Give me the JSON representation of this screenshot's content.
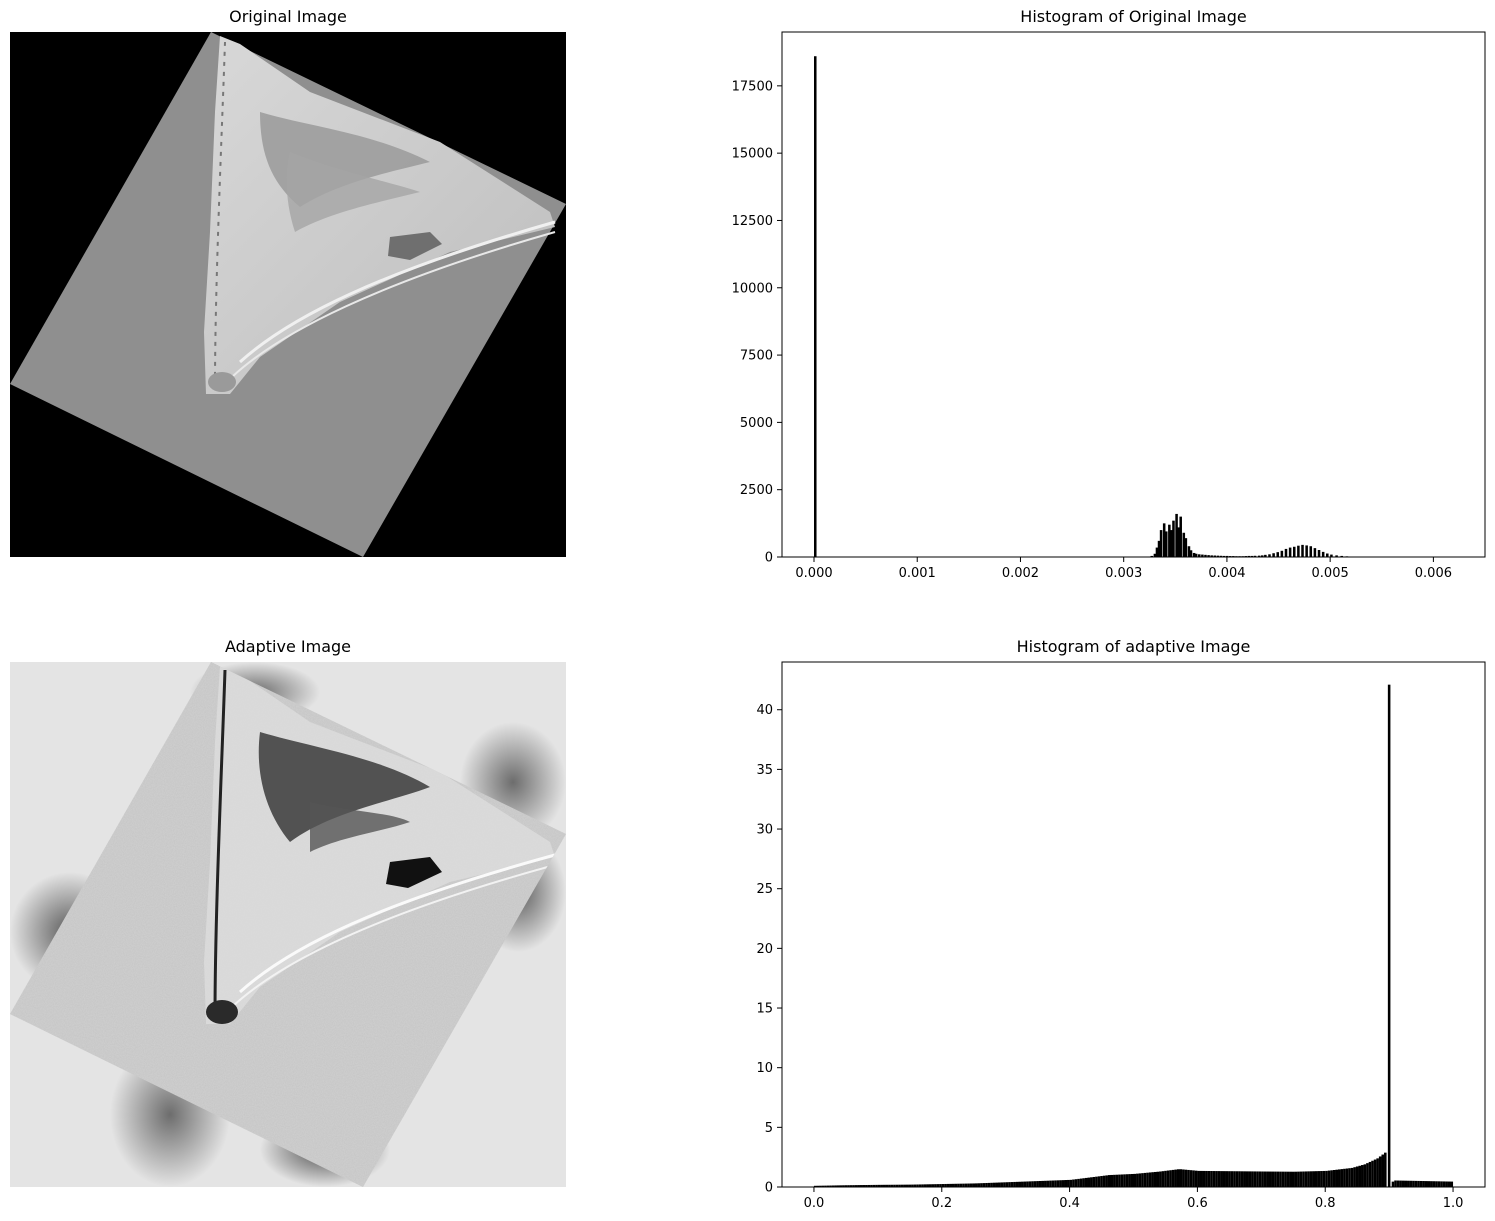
{
  "panels": {
    "original_image": {
      "title": "Original Image"
    },
    "adaptive_image": {
      "title": "Adaptive Image"
    }
  },
  "chart_data": [
    {
      "type": "bar",
      "title": "Histogram of Original Image",
      "xlabel": "",
      "ylabel": "",
      "xlim": [
        -0.00031,
        0.0065
      ],
      "ylim": [
        0,
        19500
      ],
      "xticks": [
        "0.000",
        "0.001",
        "0.002",
        "0.003",
        "0.004",
        "0.005",
        "0.006"
      ],
      "yticks": [
        "0",
        "2500",
        "5000",
        "7500",
        "10000",
        "12500",
        "15000",
        "17500"
      ],
      "bar_color": "#000000",
      "bin_width": 2.45e-05,
      "bins": [
        [
          0.0,
          18600
        ],
        [
          3.26,
          40
        ],
        [
          3.29,
          120
        ],
        [
          3.31,
          350
        ],
        [
          3.33,
          600
        ],
        [
          3.35,
          1000
        ],
        [
          3.38,
          1250
        ],
        [
          3.4,
          950
        ],
        [
          3.43,
          1200
        ],
        [
          3.45,
          1000
        ],
        [
          3.47,
          1350
        ],
        [
          3.5,
          1600
        ],
        [
          3.52,
          1100
        ],
        [
          3.54,
          1500
        ],
        [
          3.57,
          900
        ],
        [
          3.59,
          700
        ],
        [
          3.62,
          400
        ],
        [
          3.64,
          250
        ],
        [
          3.67,
          150
        ],
        [
          3.69,
          120
        ],
        [
          3.72,
          100
        ],
        [
          3.75,
          90
        ],
        [
          3.78,
          80
        ],
        [
          3.81,
          70
        ],
        [
          3.84,
          60
        ],
        [
          3.87,
          55
        ],
        [
          3.9,
          50
        ],
        [
          3.93,
          45
        ],
        [
          3.96,
          40
        ],
        [
          3.99,
          40
        ],
        [
          4.02,
          35
        ],
        [
          4.05,
          35
        ],
        [
          4.08,
          30
        ],
        [
          4.11,
          30
        ],
        [
          4.14,
          30
        ],
        [
          4.17,
          35
        ],
        [
          4.2,
          40
        ],
        [
          4.23,
          40
        ],
        [
          4.26,
          45
        ],
        [
          4.3,
          50
        ],
        [
          4.33,
          60
        ],
        [
          4.36,
          80
        ],
        [
          4.4,
          100
        ],
        [
          4.44,
          140
        ],
        [
          4.48,
          180
        ],
        [
          4.52,
          230
        ],
        [
          4.56,
          300
        ],
        [
          4.6,
          350
        ],
        [
          4.64,
          380
        ],
        [
          4.68,
          420
        ],
        [
          4.72,
          450
        ],
        [
          4.76,
          430
        ],
        [
          4.8,
          400
        ],
        [
          4.84,
          330
        ],
        [
          4.88,
          260
        ],
        [
          4.92,
          190
        ],
        [
          4.96,
          130
        ],
        [
          5.0,
          90
        ],
        [
          5.05,
          60
        ],
        [
          5.1,
          40
        ],
        [
          5.15,
          25
        ],
        [
          5.2,
          15
        ],
        [
          5.25,
          8
        ],
        [
          5.3,
          4
        ]
      ],
      "bins_x_scale": 0.001
    },
    {
      "type": "bar",
      "title": "Histogram of adaptive Image",
      "xlabel": "",
      "ylabel": "",
      "xlim": [
        -0.05,
        1.05
      ],
      "ylim": [
        0,
        44
      ],
      "xticks": [
        "0.0",
        "0.2",
        "0.4",
        "0.6",
        "0.8",
        "1.0"
      ],
      "yticks": [
        "0",
        "5",
        "10",
        "15",
        "20",
        "25",
        "30",
        "35",
        "40"
      ],
      "bar_color": "#000000",
      "profile": [
        [
          0.0,
          0.1
        ],
        [
          0.05,
          0.15
        ],
        [
          0.1,
          0.18
        ],
        [
          0.15,
          0.2
        ],
        [
          0.2,
          0.25
        ],
        [
          0.25,
          0.3
        ],
        [
          0.3,
          0.4
        ],
        [
          0.35,
          0.5
        ],
        [
          0.4,
          0.6
        ],
        [
          0.43,
          0.8
        ],
        [
          0.46,
          1.0
        ],
        [
          0.5,
          1.1
        ],
        [
          0.54,
          1.3
        ],
        [
          0.57,
          1.5
        ],
        [
          0.6,
          1.35
        ],
        [
          0.7,
          1.3
        ],
        [
          0.75,
          1.28
        ],
        [
          0.8,
          1.35
        ],
        [
          0.84,
          1.6
        ],
        [
          0.86,
          1.9
        ],
        [
          0.88,
          2.4
        ],
        [
          0.895,
          3.0
        ]
      ],
      "spike": {
        "x": 0.9,
        "value": 42.1
      },
      "tail": [
        [
          0.905,
          0.55
        ],
        [
          1.0,
          0.45
        ]
      ],
      "bin_width": 0.004
    }
  ]
}
